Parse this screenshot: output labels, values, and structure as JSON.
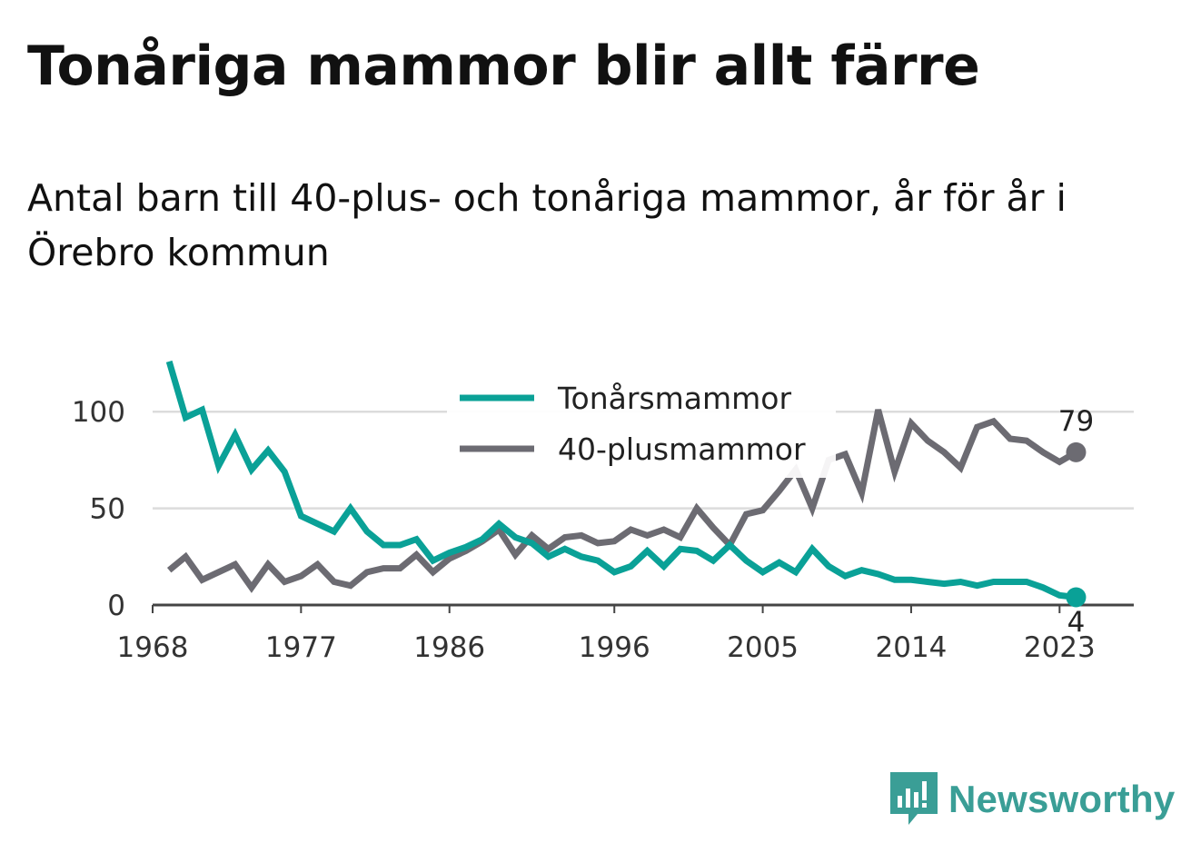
{
  "title": "Tonåriga mammor blir allt färre",
  "subtitle": "Antal barn till 40-plus- och tonåriga mammor, år för år i Örebro kommun",
  "logo_text": "Newsworthy",
  "chart_data": {
    "type": "line",
    "x": [
      1969,
      1970,
      1971,
      1972,
      1973,
      1974,
      1975,
      1976,
      1977,
      1978,
      1979,
      1980,
      1981,
      1982,
      1983,
      1984,
      1985,
      1986,
      1987,
      1988,
      1989,
      1990,
      1991,
      1992,
      1993,
      1994,
      1995,
      1996,
      1997,
      1998,
      1999,
      2000,
      2001,
      2002,
      2003,
      2004,
      2005,
      2006,
      2007,
      2008,
      2009,
      2010,
      2011,
      2012,
      2013,
      2014,
      2015,
      2016,
      2017,
      2018,
      2019,
      2020,
      2021,
      2022,
      2023,
      2024
    ],
    "x_ticks": [
      "1968",
      "1977",
      "1986",
      "1996",
      "2005",
      "2014",
      "2023"
    ],
    "y_ticks": [
      "0",
      "50",
      "100"
    ],
    "ylim": [
      0,
      125
    ],
    "grid": true,
    "legend_position": "top-center",
    "series": [
      {
        "name": "Tonårsmammor",
        "color": "#0aa197",
        "values": [
          126,
          97,
          101,
          72,
          88,
          70,
          80,
          69,
          46,
          42,
          38,
          50,
          38,
          31,
          31,
          34,
          23,
          27,
          30,
          34,
          42,
          35,
          32,
          25,
          29,
          25,
          23,
          17,
          20,
          28,
          20,
          29,
          28,
          23,
          31,
          23,
          17,
          22,
          17,
          29,
          20,
          15,
          18,
          16,
          13,
          13,
          12,
          11,
          12,
          10,
          12,
          12,
          12,
          9,
          5,
          4
        ]
      },
      {
        "name": "40-plusmammor",
        "color": "#6c6b72",
        "values": [
          18,
          25,
          13,
          17,
          21,
          9,
          21,
          12,
          15,
          21,
          12,
          10,
          17,
          19,
          19,
          26,
          17,
          24,
          28,
          33,
          39,
          26,
          36,
          29,
          35,
          36,
          32,
          33,
          39,
          36,
          39,
          35,
          50,
          40,
          31,
          47,
          49,
          59,
          70,
          50,
          75,
          78,
          58,
          101,
          69,
          94,
          85,
          79,
          71,
          92,
          95,
          86,
          85,
          79,
          74,
          79
        ]
      }
    ],
    "end_labels": [
      "4",
      "79"
    ]
  }
}
